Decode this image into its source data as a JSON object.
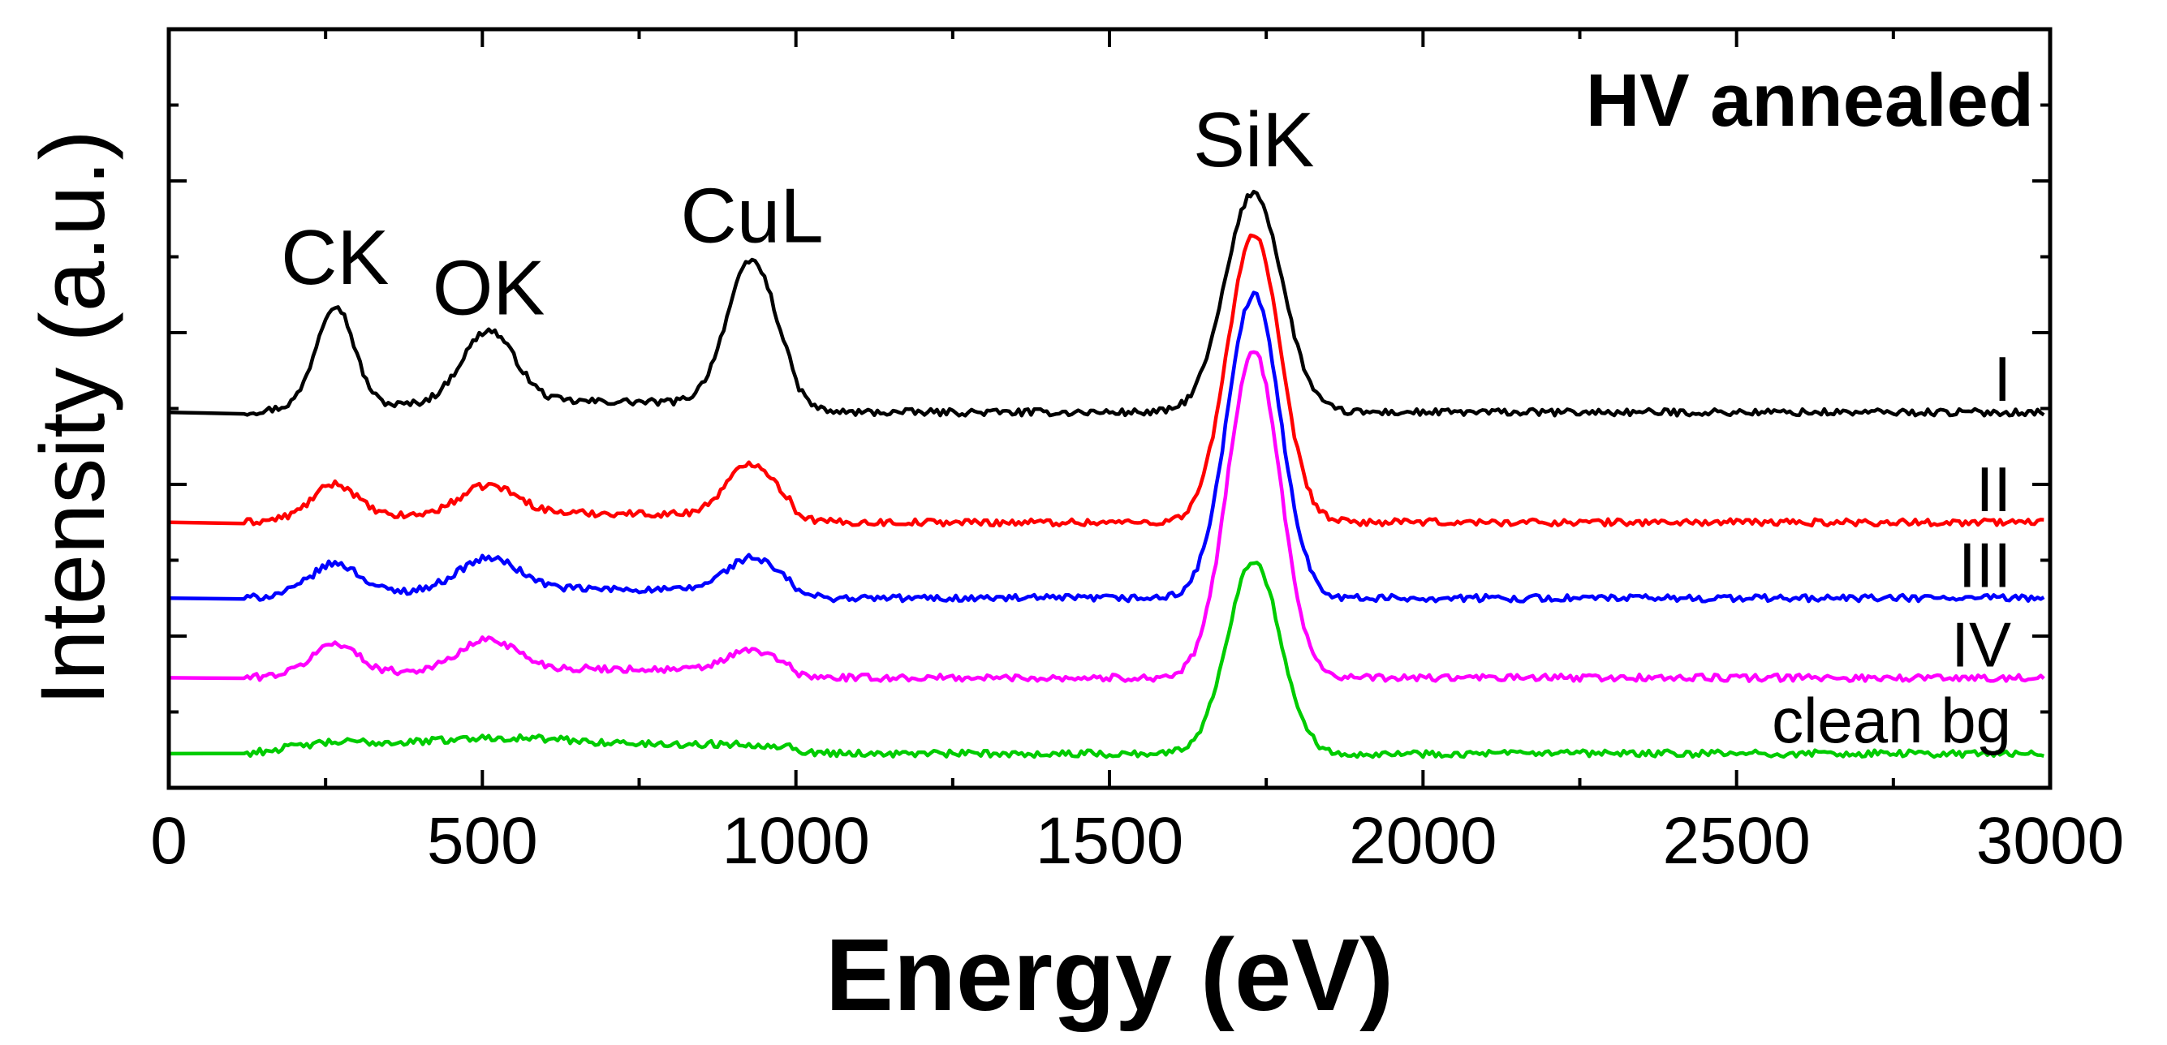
{
  "chart_data": {
    "type": "line",
    "title": "HV annealed",
    "xlabel": "Energy (eV)",
    "ylabel": "Intensity (a.u.)",
    "xlim": [
      0,
      3000
    ],
    "xticks": [
      "0",
      "500",
      "1000",
      "1500",
      "2000",
      "2500",
      "3000"
    ],
    "yticks_shown": false,
    "ylim": [
      0,
      100
    ],
    "peak_labels": [
      {
        "label": "CK",
        "x": 265
      },
      {
        "label": "OK",
        "x": 510
      },
      {
        "label": "CuL",
        "x": 930
      },
      {
        "label": "SiK",
        "x": 1730
      }
    ],
    "series": [
      {
        "name": "I",
        "color": "#000000",
        "baseline": 49.5,
        "peaks": [
          {
            "x": 265,
            "height": 13.5,
            "width": 30
          },
          {
            "x": 510,
            "height": 9.5,
            "width": 42
          },
          {
            "x": 930,
            "height": 19.0,
            "width": 40
          },
          {
            "x": 1730,
            "height": 29.0,
            "width": 45
          }
        ]
      },
      {
        "name": "II",
        "color": "#ff0000",
        "baseline": 35.0,
        "peaks": [
          {
            "x": 265,
            "height": 4.5,
            "width": 35
          },
          {
            "x": 510,
            "height": 3.8,
            "width": 45
          },
          {
            "x": 930,
            "height": 7.0,
            "width": 40
          },
          {
            "x": 1730,
            "height": 38.0,
            "width": 42
          }
        ]
      },
      {
        "name": "III",
        "color": "#0000ff",
        "baseline": 25.0,
        "peaks": [
          {
            "x": 265,
            "height": 4.0,
            "width": 38
          },
          {
            "x": 510,
            "height": 4.2,
            "width": 48
          },
          {
            "x": 930,
            "height": 4.5,
            "width": 42
          },
          {
            "x": 1730,
            "height": 40.0,
            "width": 42
          }
        ]
      },
      {
        "name": "IV",
        "color": "#ff00ff",
        "baseline": 14.5,
        "peaks": [
          {
            "x": 265,
            "height": 4.0,
            "width": 35
          },
          {
            "x": 510,
            "height": 4.0,
            "width": 45
          },
          {
            "x": 930,
            "height": 2.8,
            "width": 40
          },
          {
            "x": 1730,
            "height": 43.0,
            "width": 42
          }
        ]
      },
      {
        "name": "clean bg",
        "color": "#00cc00",
        "baseline": 4.5,
        "peaks": [
          {
            "x": 265,
            "height": 0.8,
            "width": 60
          },
          {
            "x": 510,
            "height": 1.0,
            "width": 120
          },
          {
            "x": 930,
            "height": 0.4,
            "width": 80
          },
          {
            "x": 1730,
            "height": 25.5,
            "width": 42
          }
        ]
      }
    ]
  }
}
